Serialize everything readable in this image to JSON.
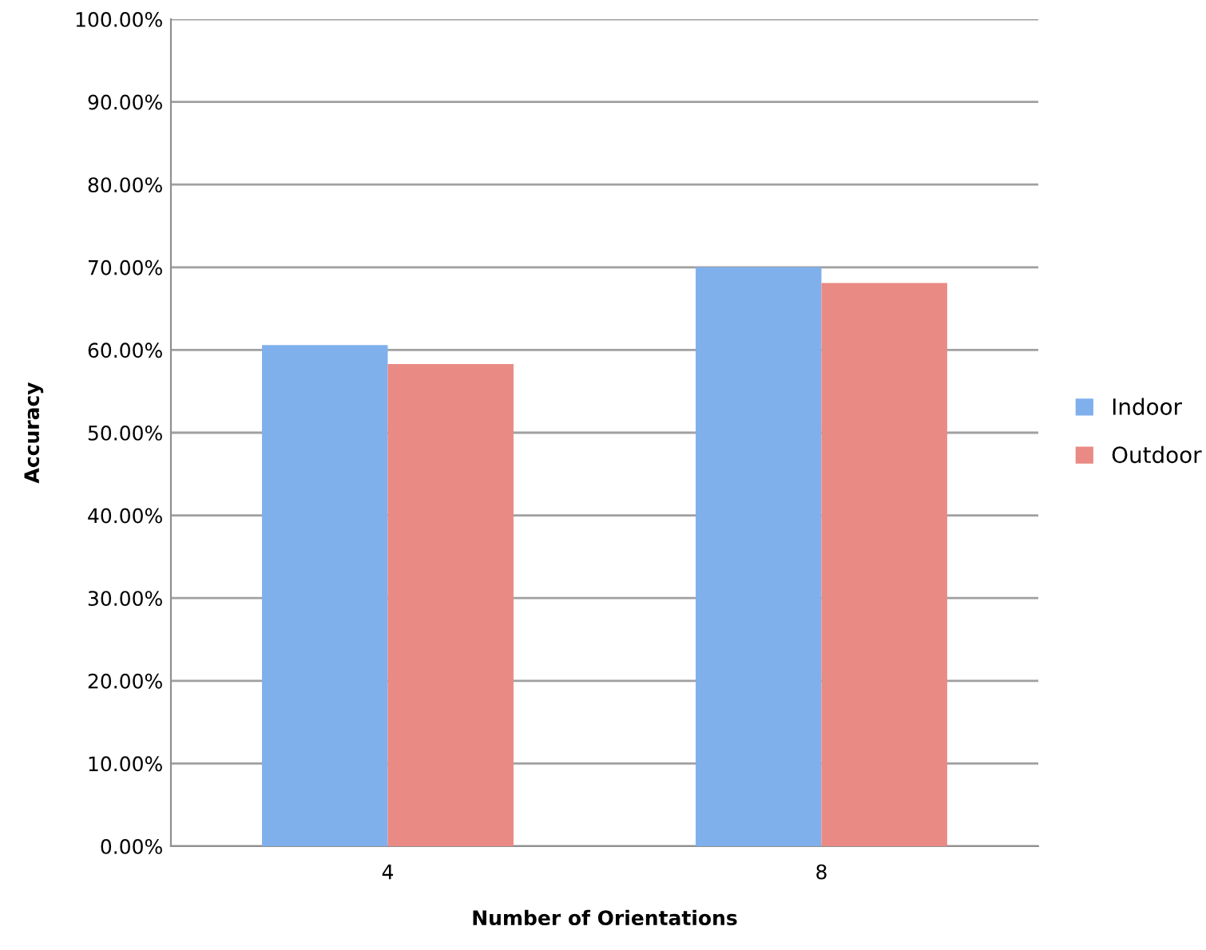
{
  "chart_data": {
    "type": "bar",
    "xlabel": "Number of Orientations",
    "ylabel": "Accuracy",
    "categories": [
      "4",
      "8"
    ],
    "series": [
      {
        "name": "Indoor",
        "color": "#7fb0ec",
        "values": [
          60.6,
          70.0
        ]
      },
      {
        "name": "Outdoor",
        "color": "#ea8a84",
        "values": [
          58.3,
          68.1
        ]
      }
    ],
    "ylim": [
      0,
      100
    ],
    "yticks": [
      {
        "value": 0,
        "label": "0.00%"
      },
      {
        "value": 10,
        "label": "10.00%"
      },
      {
        "value": 20,
        "label": "20.00%"
      },
      {
        "value": 30,
        "label": "30.00%"
      },
      {
        "value": 40,
        "label": "40.00%"
      },
      {
        "value": 50,
        "label": "50.00%"
      },
      {
        "value": 60,
        "label": "60.00%"
      },
      {
        "value": 70,
        "label": "70.00%"
      },
      {
        "value": 80,
        "label": "80.00%"
      },
      {
        "value": 90,
        "label": "90.00%"
      },
      {
        "value": 100,
        "label": "100.00%"
      }
    ],
    "grid": "y",
    "legend": "right"
  }
}
